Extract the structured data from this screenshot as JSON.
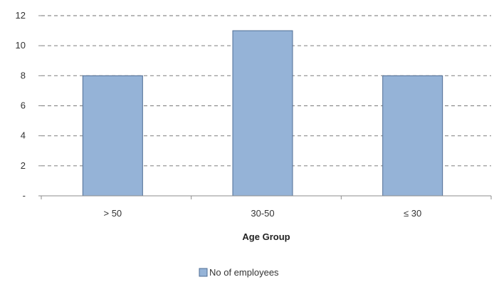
{
  "chart_data": {
    "type": "bar",
    "categories": [
      "> 50",
      "30-50",
      "≤ 30"
    ],
    "series": [
      {
        "name": "No of employees",
        "values": [
          8,
          11,
          8
        ]
      }
    ],
    "title": "",
    "xlabel": "Age Group",
    "ylabel": "",
    "ylim": [
      0,
      12
    ],
    "yticks": [
      0,
      2,
      4,
      6,
      8,
      10,
      12
    ],
    "ytick_labels": [
      "-",
      "2",
      "4",
      "6",
      "8",
      "10",
      "12"
    ],
    "grid": true,
    "legend": "bottom",
    "bar_color": "#95b3d7"
  }
}
